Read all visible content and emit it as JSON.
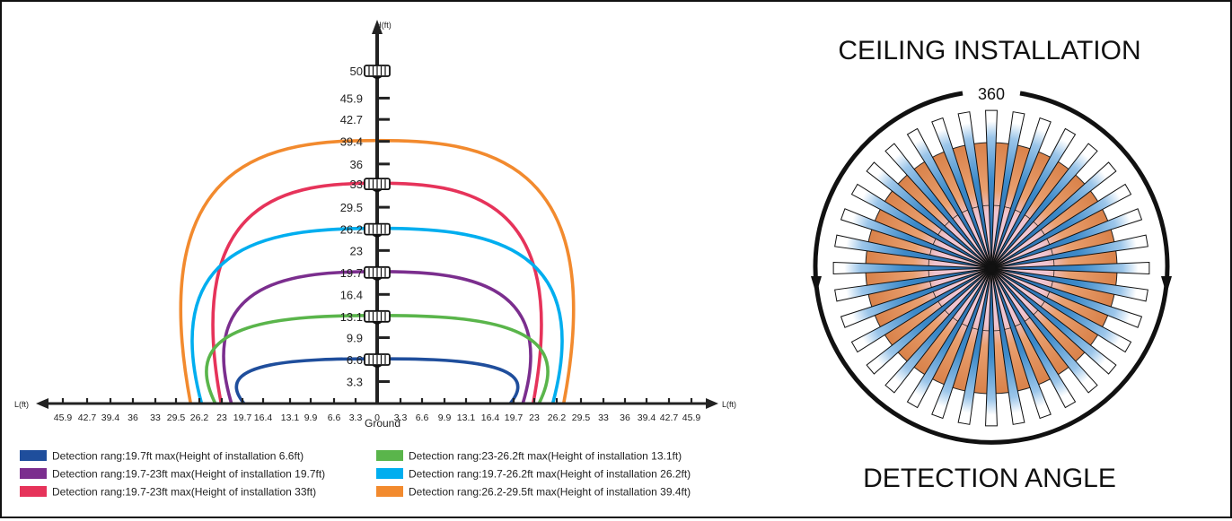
{
  "left_diagram": {
    "h_axis_label": "H(ft)",
    "l_axis_label_left": "L(ft)",
    "l_axis_label_right": "L(ft)",
    "ground_label": "Ground",
    "height_labels": [
      "3.3",
      "6.6",
      "9.9",
      "13.1",
      "16.4",
      "19.7",
      "23",
      "26.2",
      "29.5",
      "33",
      "36",
      "39.4",
      "42.7",
      "45.9",
      "50"
    ],
    "ground_ticks_left": [
      "45.9",
      "42.7",
      "39.4",
      "36",
      "33",
      "29.5",
      "26.2",
      "23",
      "19.7",
      "16.4",
      "13.1",
      "9.9",
      "6.6",
      "3.3",
      "0"
    ],
    "ground_ticks_right": [
      "0",
      "3.3",
      "6.6",
      "9.9",
      "13.1",
      "16.4",
      "19.7",
      "23",
      "26.2",
      "29.5",
      "33",
      "36",
      "39.4",
      "42.7",
      "45.9"
    ],
    "zones": [
      {
        "height": 6.6,
        "range": 19.7,
        "color": "#1f4e9c"
      },
      {
        "height": 13.1,
        "range": 23.9,
        "color": "#5ab54b"
      },
      {
        "height": 19.7,
        "range": 21.5,
        "color": "#7b2e8e"
      },
      {
        "height": 26.2,
        "range": 25.9,
        "color": "#00aeef"
      },
      {
        "height": 33,
        "range": 23.0,
        "color": "#e6335a"
      },
      {
        "height": 39.4,
        "range": 27.5,
        "color": "#f28a2e"
      }
    ],
    "sensor_heights": [
      6.6,
      13.1,
      19.7,
      26.2,
      33,
      50
    ]
  },
  "legend": [
    {
      "text": "Detection rang:19.7ft max(Height of installation 6.6ft)",
      "color": "#1f4e9c"
    },
    {
      "text": "Detection rang:19.7-23ft max(Height of installation 19.7ft)",
      "color": "#7b2e8e"
    },
    {
      "text": "Detection rang:19.7-23ft max(Height of installation 33ft)",
      "color": "#e6335a"
    },
    {
      "text": "Detection rang:23-26.2ft max(Height of installation 13.1ft)",
      "color": "#5ab54b"
    },
    {
      "text": "Detection rang:19.7-26.2ft max(Height of installation 26.2ft)",
      "color": "#00aeef"
    },
    {
      "text": "Detection rang:26.2-29.5ft max(Height of installation 39.4ft)",
      "color": "#f28a2e"
    }
  ],
  "right_diagram": {
    "title_top": "CEILING INSTALLATION",
    "title_bottom": "DETECTION ANGLE",
    "angle_label": "360",
    "beam_count": 36,
    "colors": {
      "blue": "#3d8ac9",
      "orange": "#d9824a",
      "pink": "#e9b7cf"
    }
  }
}
